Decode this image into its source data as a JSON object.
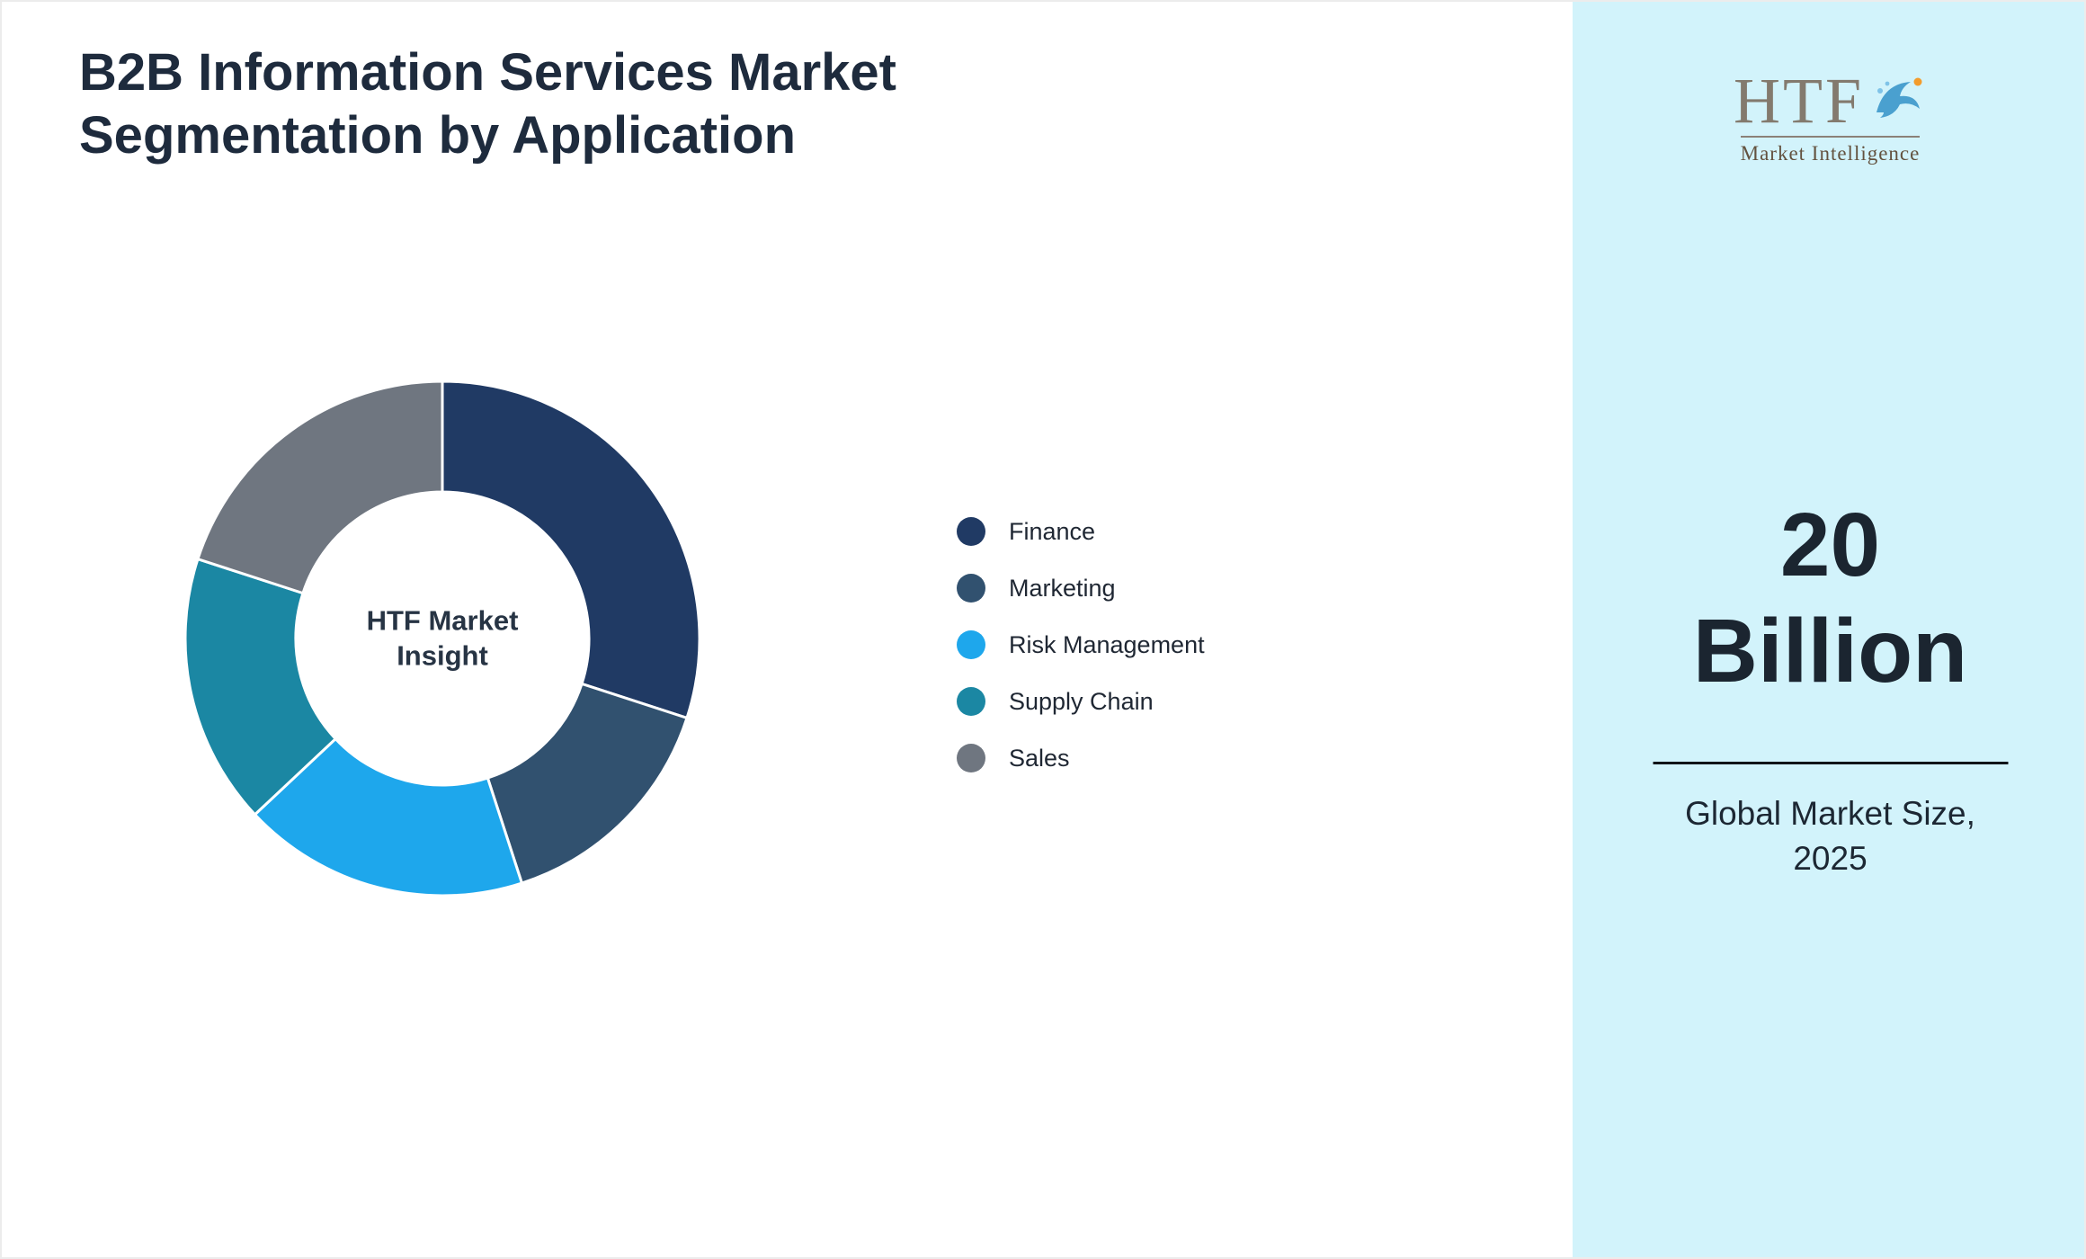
{
  "title": {
    "line1": "B2B Information Services Market",
    "line2": "Segmentation by Application"
  },
  "chart_data": {
    "type": "pie",
    "subtype": "donut",
    "title": "B2B Information Services Market Segmentation by Application",
    "center_label": "HTF Market Insight",
    "categories": [
      "Finance",
      "Marketing",
      "Risk Management",
      "Supply Chain",
      "Sales"
    ],
    "values": [
      30,
      15,
      18,
      17,
      20
    ],
    "colors": [
      "#203a64",
      "#31516f",
      "#1ea7ec",
      "#1b87a3",
      "#6f7680"
    ],
    "donut_hole_ratio": 0.57,
    "start_angle_deg": 0,
    "direction": "clockwise",
    "legend_position": "right",
    "separator_color": "#ffffff"
  },
  "legend": {
    "items": [
      {
        "label": "Finance",
        "color": "#203a64"
      },
      {
        "label": "Marketing",
        "color": "#31516f"
      },
      {
        "label": "Risk Management",
        "color": "#1ea7ec"
      },
      {
        "label": "Supply Chain",
        "color": "#1b87a3"
      },
      {
        "label": "Sales",
        "color": "#6f7680"
      }
    ]
  },
  "sidebar": {
    "background": "#d2f3fb",
    "logo": {
      "text": "HTF",
      "subtext": "Market Intelligence",
      "dolphin_color": "#4aa0cf",
      "accent_color": "#f39c2c"
    },
    "stat_value_line1": "20",
    "stat_value_line2": "Billion",
    "stat_label_line1": "Global Market Size,",
    "stat_label_line2": "2025"
  }
}
